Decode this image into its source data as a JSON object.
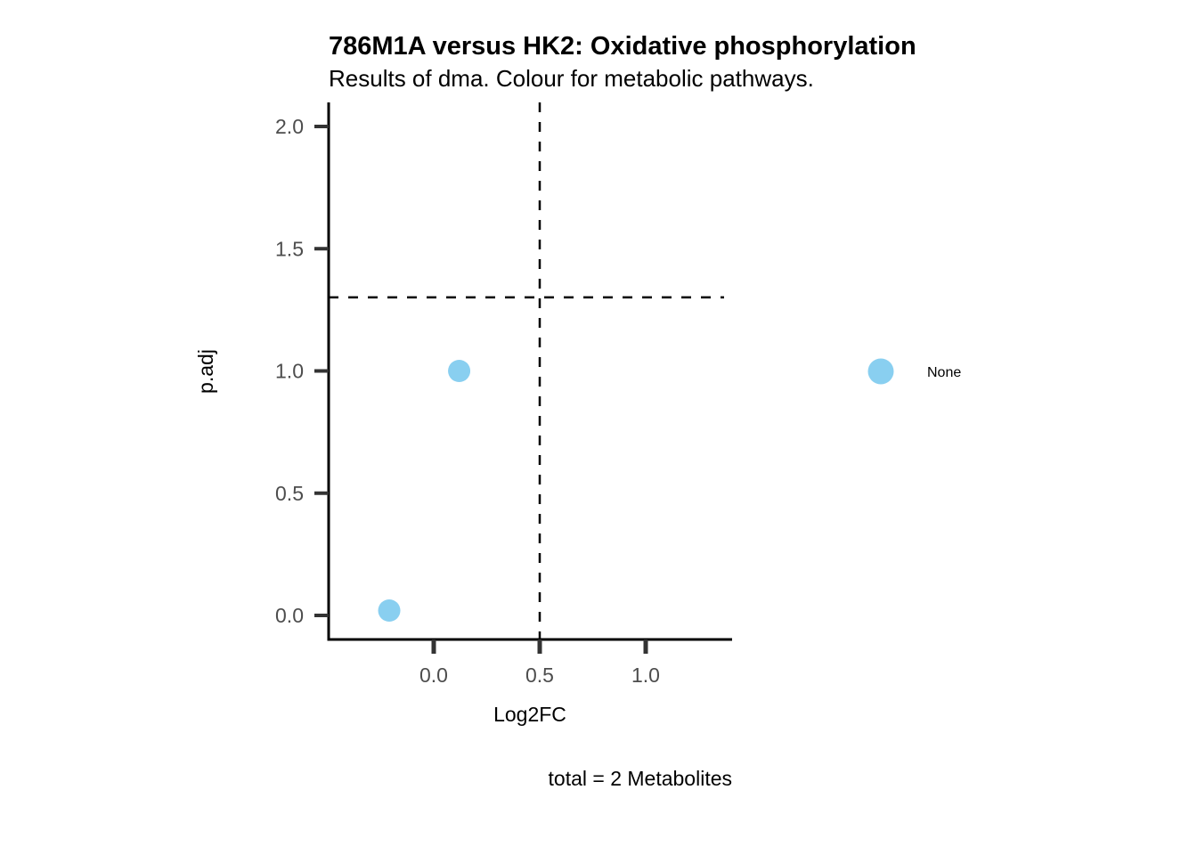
{
  "chart_data": {
    "type": "scatter",
    "title": "786M1A versus HK2: Oxidative phosphorylation",
    "subtitle": "Results of dma. Colour for metabolic pathways.",
    "xlabel": "Log2FC",
    "ylabel": "p.adj",
    "caption": "total = 2 Metabolites",
    "xlim": [
      -0.5,
      1.4
    ],
    "ylim": [
      -0.1,
      2.1
    ],
    "x_ticks": [
      0.0,
      0.5,
      1.0
    ],
    "x_tick_labels": [
      "0.0",
      "0.5",
      "1.0"
    ],
    "y_ticks": [
      0.0,
      0.5,
      1.0,
      1.5,
      2.0
    ],
    "y_tick_labels": [
      "0.0",
      "0.5",
      "1.0",
      "1.5",
      "2.0"
    ],
    "grid": false,
    "reference_lines": {
      "vertical_x": 0.5,
      "horizontal_y": 1.301
    },
    "series": [
      {
        "name": "None",
        "color": "#89CFF0",
        "points": [
          {
            "x": -0.21,
            "y": 0.02
          },
          {
            "x": 0.12,
            "y": 1.0
          }
        ]
      }
    ],
    "legend": {
      "position": "right",
      "entries": [
        "None"
      ]
    }
  }
}
